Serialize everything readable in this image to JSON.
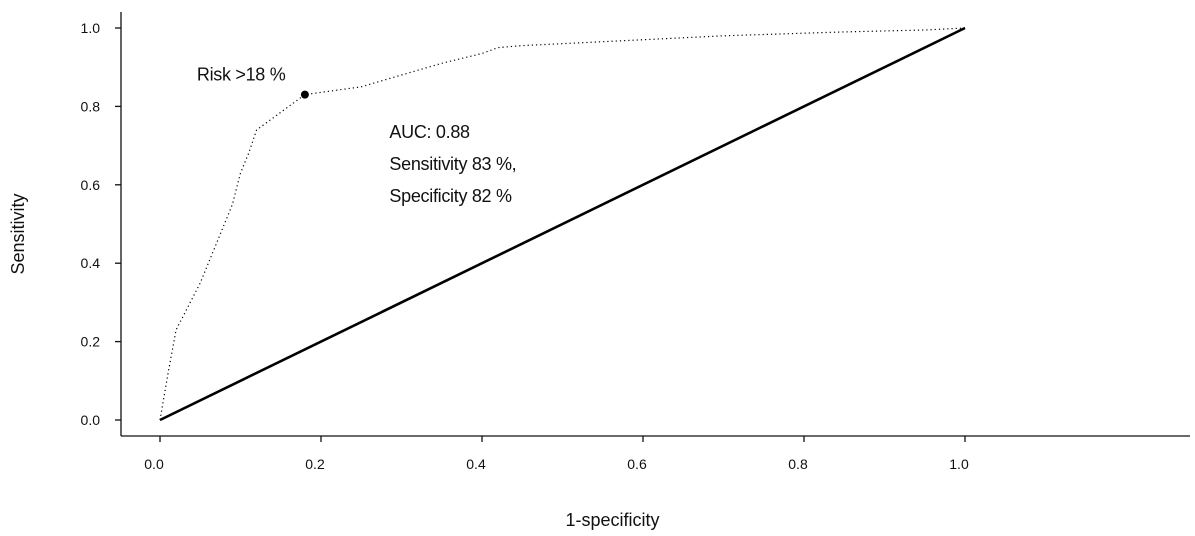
{
  "chart_data": {
    "type": "line",
    "xlabel": "1-specificity",
    "ylabel": "Sensitivity",
    "xlim": [
      0,
      1
    ],
    "ylim": [
      0,
      1
    ],
    "x_ticks": [
      "0.0",
      "0.2",
      "0.4",
      "0.6",
      "0.8",
      "1.0"
    ],
    "y_ticks": [
      "0.0",
      "0.2",
      "0.4",
      "0.6",
      "0.8",
      "1.0"
    ],
    "grid": false,
    "series": [
      {
        "style": "dotted",
        "color": "#000000",
        "x": [
          0.0,
          0.01,
          0.02,
          0.03,
          0.05,
          0.07,
          0.09,
          0.1,
          0.11,
          0.12,
          0.14,
          0.16,
          0.18,
          0.25,
          0.3,
          0.35,
          0.4,
          0.42,
          0.45,
          0.55,
          0.7,
          0.85,
          0.95,
          1.0
        ],
        "y": [
          0.0,
          0.12,
          0.23,
          0.27,
          0.35,
          0.45,
          0.55,
          0.63,
          0.68,
          0.74,
          0.77,
          0.8,
          0.83,
          0.85,
          0.88,
          0.91,
          0.935,
          0.95,
          0.955,
          0.965,
          0.98,
          0.99,
          0.995,
          1.0
        ]
      },
      {
        "style": "solid",
        "color": "#000000",
        "x": [
          0.0,
          1.0
        ],
        "y": [
          0.0,
          1.0
        ]
      }
    ],
    "marker": {
      "x": 0.18,
      "y": 0.83,
      "label": "Risk >18 %"
    },
    "annotations": [
      "AUC: 0.88",
      "Sensitivity 83 %,",
      "Specificity 82 %"
    ]
  }
}
